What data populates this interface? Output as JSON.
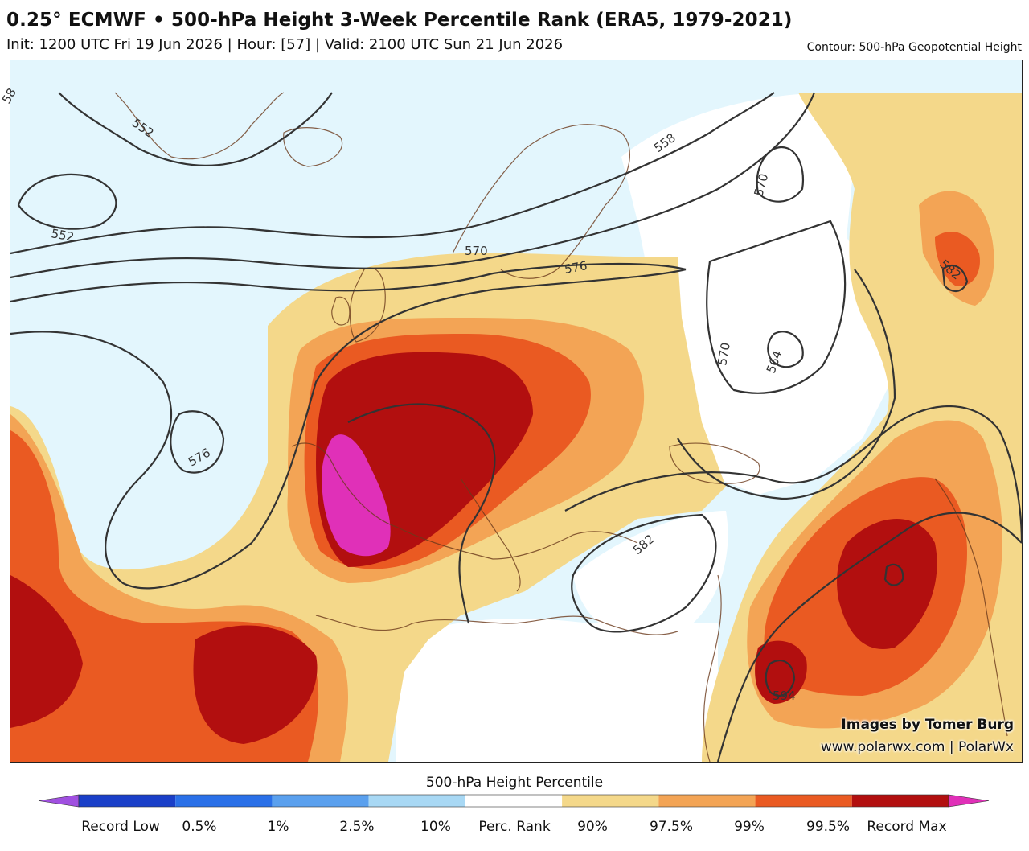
{
  "header": {
    "title": "0.25° ECMWF • 500-hPa Height 3-Week Percentile Rank (ERA5, 1979-2021)",
    "subtitle": "Init: 1200 UTC Fri 19 Jun 2026 | Hour: [57] | Valid: 2100 UTC Sun 21 Jun 2026",
    "contour_note": "Contour: 500-hPa Geopotential Height"
  },
  "map": {
    "contour_labels": [
      "552",
      "552",
      "558",
      "570",
      "576",
      "570",
      "570",
      "564",
      "576",
      "582",
      "582",
      "594",
      "58"
    ],
    "credit_line1": "Images by Tomer Burg",
    "credit_line2": "www.polarwx.com | PolarWx"
  },
  "colorbar": {
    "title": "500-hPa Height Percentile",
    "labels": [
      "Record Low",
      "0.5%",
      "1%",
      "2.5%",
      "10%",
      "Perc. Rank",
      "90%",
      "97.5%",
      "99%",
      "99.5%",
      "Record Max"
    ],
    "colors": [
      "#a050e0",
      "#1a3fc8",
      "#2a70e8",
      "#5aa0ee",
      "#a8d8f4",
      "#ffffff",
      "#f4d88a",
      "#f3a455",
      "#ea5a22",
      "#b20f0f",
      "#e030b8"
    ]
  },
  "colors": {
    "ocean_below": "#e3f6fd",
    "land_line": "#6b3a1c",
    "contour_line": "#333333"
  }
}
